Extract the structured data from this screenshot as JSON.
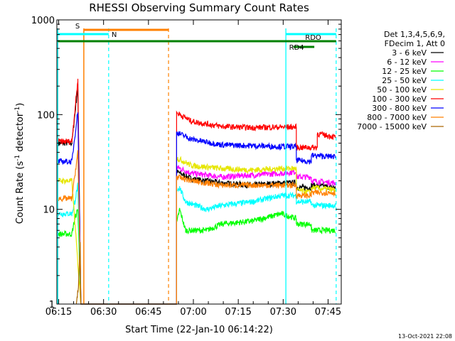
{
  "chart_data": {
    "type": "line",
    "title": "RHESSI Observing Summary Count Rates",
    "xlabel": "Start Time (22-Jan-10 06:14:22)",
    "ylabel_main": "Count Rate (s",
    "ylabel_sup": "-1",
    "ylabel_tail": " detector",
    "ylabel_sup2": "-1",
    "ylabel_end": ")",
    "xlim_min": [
      0,
      95
    ],
    "ylim": [
      1,
      1000
    ],
    "x_ticks": [
      {
        "t": 0.6,
        "label": "06:15"
      },
      {
        "t": 15.6,
        "label": "06:30"
      },
      {
        "t": 30.6,
        "label": "06:45"
      },
      {
        "t": 45.6,
        "label": "07:00"
      },
      {
        "t": 60.6,
        "label": "07:15"
      },
      {
        "t": 75.6,
        "label": "07:30"
      },
      {
        "t": 90.6,
        "label": "07:45"
      }
    ],
    "y_ticks": [
      {
        "v": 1,
        "label": "1"
      },
      {
        "v": 10,
        "label": "10"
      },
      {
        "v": 100,
        "label": "100"
      },
      {
        "v": 1000,
        "label": "1000"
      }
    ],
    "legend_header": [
      "Det 1,3,4,5,6,9,",
      "FDecim 1, Att 0"
    ],
    "series": [
      {
        "name": "3 - 6 keV",
        "color": "#000000",
        "points": [
          [
            0.5,
            50
          ],
          [
            5,
            50
          ],
          [
            7,
            200
          ],
          [
            8,
            1
          ],
          [
            40,
            1
          ],
          [
            40,
            25
          ],
          [
            45,
            21
          ],
          [
            55,
            19
          ],
          [
            65,
            18
          ],
          [
            75,
            19
          ],
          [
            80,
            19
          ],
          [
            80,
            17
          ],
          [
            85,
            17
          ],
          [
            85,
            18
          ],
          [
            93,
            17
          ]
        ]
      },
      {
        "name": "6 - 12 keV",
        "color": "#ff00ff",
        "points": [
          [
            40,
            28
          ],
          [
            45,
            24
          ],
          [
            55,
            22
          ],
          [
            65,
            23
          ],
          [
            75,
            24
          ],
          [
            80,
            25
          ],
          [
            80,
            22
          ],
          [
            85,
            22
          ],
          [
            85,
            20
          ],
          [
            93,
            19
          ]
        ]
      },
      {
        "name": "12 - 25 keV",
        "color": "#00ff00",
        "points": [
          [
            0.5,
            5.5
          ],
          [
            5,
            5.5
          ],
          [
            6,
            8
          ],
          [
            7,
            10
          ],
          [
            8,
            1
          ],
          [
            40,
            1
          ],
          [
            40,
            7
          ],
          [
            41,
            10
          ],
          [
            43,
            6
          ],
          [
            50,
            6
          ],
          [
            55,
            7
          ],
          [
            65,
            7.5
          ],
          [
            75,
            9
          ],
          [
            80,
            8
          ],
          [
            80,
            7
          ],
          [
            85,
            7
          ],
          [
            85,
            6
          ],
          [
            93,
            6
          ]
        ]
      },
      {
        "name": "25 - 50 keV",
        "color": "#00ffff",
        "points": [
          [
            0.5,
            9
          ],
          [
            5,
            9
          ],
          [
            6,
            12
          ],
          [
            7,
            18
          ],
          [
            8,
            1
          ],
          [
            40,
            1
          ],
          [
            40,
            16
          ],
          [
            41,
            17
          ],
          [
            43,
            12
          ],
          [
            50,
            10
          ],
          [
            55,
            11
          ],
          [
            65,
            12
          ],
          [
            75,
            14
          ],
          [
            80,
            14
          ],
          [
            80,
            12
          ],
          [
            85,
            12
          ],
          [
            85,
            11
          ],
          [
            93,
            11
          ]
        ]
      },
      {
        "name": "50 - 100 keV",
        "color": "#e6e600",
        "points": [
          [
            0.5,
            20
          ],
          [
            5,
            20
          ],
          [
            8,
            1
          ],
          [
            40,
            1
          ],
          [
            40,
            35
          ],
          [
            45,
            29
          ],
          [
            55,
            27
          ],
          [
            65,
            26
          ],
          [
            75,
            27
          ],
          [
            80,
            27
          ],
          [
            80,
            16
          ],
          [
            85,
            15
          ],
          [
            85,
            17
          ],
          [
            93,
            16
          ]
        ]
      },
      {
        "name": "100 - 300 keV",
        "color": "#ff0000",
        "points": [
          [
            0.5,
            52
          ],
          [
            5,
            52
          ],
          [
            7,
            230
          ],
          [
            8,
            1
          ],
          [
            40,
            1
          ],
          [
            40,
            105
          ],
          [
            45,
            85
          ],
          [
            55,
            75
          ],
          [
            65,
            73
          ],
          [
            75,
            74
          ],
          [
            80,
            74
          ],
          [
            80,
            45
          ],
          [
            87,
            45
          ],
          [
            87,
            63
          ],
          [
            93,
            58
          ]
        ]
      },
      {
        "name": "300 - 800 keV",
        "color": "#0000ff",
        "points": [
          [
            0.5,
            32
          ],
          [
            5,
            32
          ],
          [
            7,
            110
          ],
          [
            8,
            1
          ],
          [
            40,
            1
          ],
          [
            40,
            65
          ],
          [
            45,
            55
          ],
          [
            55,
            48
          ],
          [
            65,
            47
          ],
          [
            75,
            46
          ],
          [
            80,
            46
          ],
          [
            80,
            33
          ],
          [
            85,
            32
          ],
          [
            85,
            37
          ],
          [
            93,
            36
          ]
        ]
      },
      {
        "name": "800 - 7000 keV",
        "color": "#ff8000",
        "points": [
          [
            0.5,
            13
          ],
          [
            5,
            13
          ],
          [
            7,
            40
          ],
          [
            8,
            1
          ],
          [
            40,
            1
          ],
          [
            40,
            22
          ],
          [
            45,
            20
          ],
          [
            55,
            18
          ],
          [
            65,
            18
          ],
          [
            75,
            18
          ],
          [
            80,
            18
          ],
          [
            80,
            14
          ],
          [
            85,
            14
          ],
          [
            85,
            15
          ],
          [
            93,
            15
          ]
        ]
      },
      {
        "name": "7000 - 15000 keV",
        "color": "#aa6600",
        "points": [
          [
            6.5,
            1
          ],
          [
            7.2,
            1.5
          ],
          [
            7.8,
            4.5
          ],
          [
            8,
            1
          ]
        ]
      }
    ],
    "markers": {
      "cyan_solid_t": [
        0.3,
        76.5
      ],
      "cyan_dashed_t": [
        17.3,
        93.3
      ],
      "orange_solid_t": [
        9
      ],
      "orange_dashed_t": [
        37.3
      ],
      "S": {
        "label": "S",
        "t0": 9,
        "t1": 37.3,
        "y": 42,
        "color": "#ff8000"
      },
      "N": {
        "label": "N",
        "t0": 0.3,
        "t1": 17.3,
        "y": 48,
        "color": "#00ffff"
      },
      "N2": {
        "t0": 76.5,
        "t1": 93.3,
        "y": 48,
        "color": "#00ffff"
      },
      "RDO": {
        "label": "RDO",
        "t0": 82,
        "t1": 93.3,
        "y": 58,
        "color": "#008000"
      },
      "RD4": {
        "label": "RD4",
        "t0": 79,
        "t1": 86,
        "y": 66,
        "color": "#008000"
      },
      "green_bar": {
        "t0": 0.3,
        "t1": 93.3,
        "y": 58,
        "color": "#008000"
      }
    }
  },
  "footer": {
    "timestamp": "13-Oct-2021 22:08"
  }
}
